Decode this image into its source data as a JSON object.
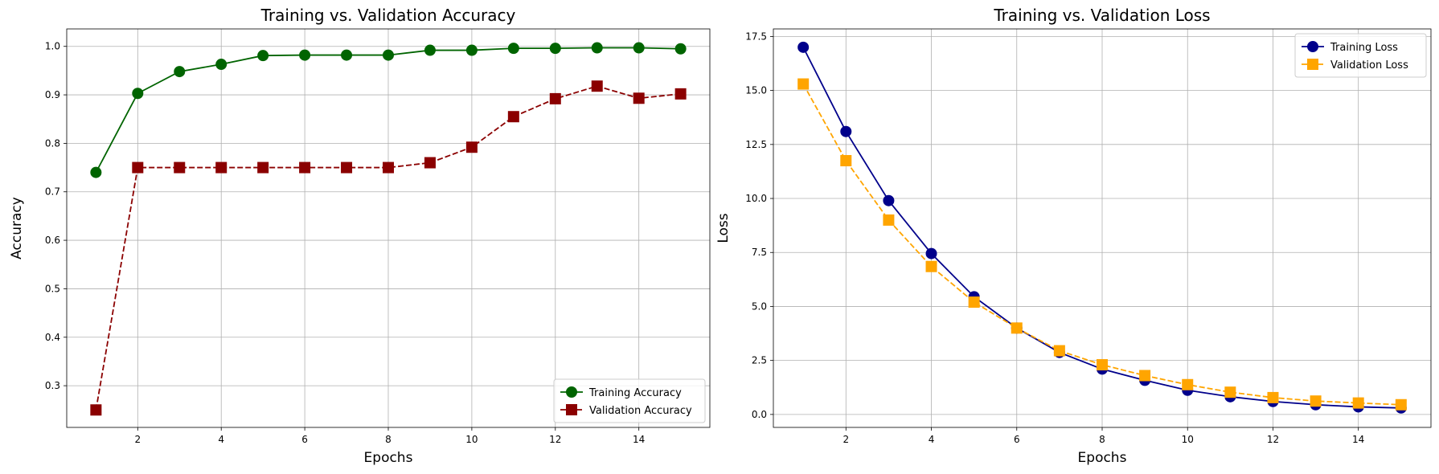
{
  "chart_data": [
    {
      "type": "line",
      "title": "Training vs. Validation Accuracy",
      "xlabel": "Epochs",
      "ylabel": "Accuracy",
      "xlim": [
        0.3,
        15.7
      ],
      "ylim": [
        0.214,
        1.036
      ],
      "xticks": [
        2,
        4,
        6,
        8,
        10,
        12,
        14
      ],
      "yticks": [
        0.3,
        0.4,
        0.5,
        0.6,
        0.7,
        0.8,
        0.9,
        1.0
      ],
      "ytick_labels": [
        "0.3",
        "0.4",
        "0.5",
        "0.6",
        "0.7",
        "0.8",
        "0.9",
        "1.0"
      ],
      "grid": true,
      "legend_position": "lower-right",
      "x": [
        1,
        2,
        3,
        4,
        5,
        6,
        7,
        8,
        9,
        10,
        11,
        12,
        13,
        14,
        15
      ],
      "series": [
        {
          "name": "Training Accuracy",
          "color": "#006400",
          "marker": "circle",
          "dashed": false,
          "values": [
            0.74,
            0.903,
            0.948,
            0.963,
            0.981,
            0.982,
            0.982,
            0.982,
            0.992,
            0.992,
            0.996,
            0.996,
            0.997,
            0.997,
            0.995
          ]
        },
        {
          "name": "Validation Accuracy",
          "color": "#8b0000",
          "marker": "square",
          "dashed": true,
          "values": [
            0.25,
            0.75,
            0.75,
            0.75,
            0.75,
            0.75,
            0.75,
            0.75,
            0.76,
            0.792,
            0.855,
            0.892,
            0.918,
            0.893,
            0.902
          ]
        }
      ]
    },
    {
      "type": "line",
      "title": "Training vs. Validation Loss",
      "xlabel": "Epochs",
      "ylabel": "Loss",
      "xlim": [
        0.3,
        15.7
      ],
      "ylim": [
        -0.6,
        17.85
      ],
      "xticks": [
        2,
        4,
        6,
        8,
        10,
        12,
        14
      ],
      "yticks": [
        0,
        2.5,
        5,
        7.5,
        10,
        12.5,
        15,
        17.5
      ],
      "ytick_labels": [
        "0.0",
        "2.5",
        "5.0",
        "7.5",
        "10.0",
        "12.5",
        "15.0",
        "17.5"
      ],
      "grid": true,
      "legend_position": "upper-right",
      "x": [
        1,
        2,
        3,
        4,
        5,
        6,
        7,
        8,
        9,
        10,
        11,
        12,
        13,
        14,
        15
      ],
      "series": [
        {
          "name": "Training Loss",
          "color": "#00008b",
          "marker": "circle",
          "dashed": false,
          "values": [
            17.0,
            13.1,
            9.9,
            7.45,
            5.45,
            4.0,
            2.87,
            2.1,
            1.58,
            1.12,
            0.82,
            0.6,
            0.45,
            0.35,
            0.3
          ]
        },
        {
          "name": "Validation Loss",
          "color": "#ffa500",
          "marker": "square",
          "dashed": true,
          "values": [
            15.3,
            11.75,
            9.0,
            6.85,
            5.2,
            4.0,
            2.95,
            2.3,
            1.8,
            1.38,
            1.03,
            0.78,
            0.62,
            0.53,
            0.45
          ]
        }
      ]
    }
  ]
}
